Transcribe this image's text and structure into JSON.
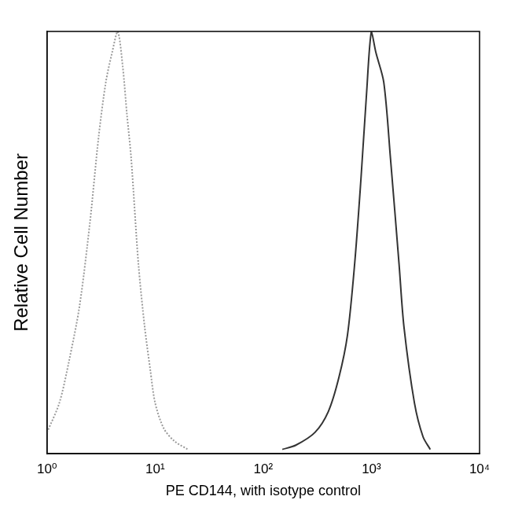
{
  "chart_data": {
    "type": "line",
    "x_label": "PE CD144, with isotype control",
    "y_label": "Relative Cell Number",
    "log": "x",
    "grid": false,
    "tick_labels": "x",
    "xlim": [
      1,
      10000
    ],
    "xticks": [
      {
        "value": 1,
        "label": "10⁰"
      },
      {
        "value": 10,
        "label": "10¹"
      },
      {
        "value": 100,
        "label": "10²"
      },
      {
        "value": 1000,
        "label": "10³"
      },
      {
        "value": 10000,
        "label": "10⁴"
      }
    ],
    "ylim": [
      0,
      100
    ],
    "yticks": [
      0,
      20,
      40,
      60,
      80,
      100
    ],
    "series": [
      {
        "color": "#9a9a9a",
        "line_style": "dotted",
        "x": [
          1,
          1.3,
          1.6,
          2,
          2.5,
          3,
          3.5,
          4,
          4.5,
          5,
          5.5,
          6,
          7,
          8,
          9,
          10,
          12,
          15,
          20
        ],
        "values": [
          5,
          12,
          22,
          35,
          55,
          75,
          88,
          95,
          100,
          92,
          80,
          70,
          45,
          30,
          20,
          12,
          6,
          3,
          1
        ]
      },
      {
        "color": "#333333",
        "line_style": "solid",
        "x": [
          150,
          200,
          300,
          400,
          500,
          600,
          700,
          800,
          900,
          1000,
          1100,
          1300,
          1500,
          1800,
          2000,
          2500,
          3000,
          3500
        ],
        "values": [
          1,
          2,
          5,
          10,
          18,
          28,
          45,
          65,
          85,
          100,
          95,
          88,
          70,
          45,
          30,
          12,
          4,
          1
        ]
      }
    ]
  }
}
